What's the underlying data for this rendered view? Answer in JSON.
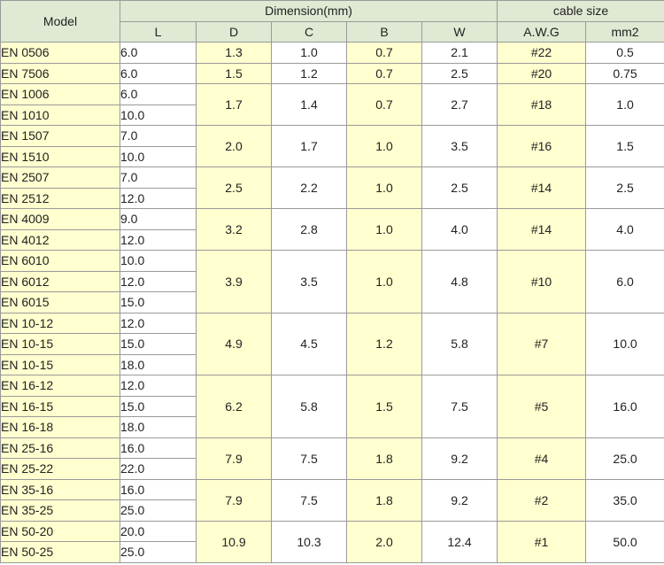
{
  "headers": {
    "model": "Model",
    "dimension": "Dimension(mm)",
    "cable": "cable size",
    "cols": [
      "L",
      "D",
      "C",
      "B",
      "W",
      "A.W.G",
      "mm2"
    ]
  },
  "groups": [
    {
      "rows": [
        {
          "model": "EN 0506",
          "L": "6.0"
        }
      ],
      "D": "1.3",
      "C": "1.0",
      "B": "0.7",
      "W": "2.1",
      "awg": "#22",
      "mm2": "0.5"
    },
    {
      "rows": [
        {
          "model": "EN 7506",
          "L": "6.0"
        }
      ],
      "D": "1.5",
      "C": "1.2",
      "B": "0.7",
      "W": "2.5",
      "awg": "#20",
      "mm2": "0.75"
    },
    {
      "rows": [
        {
          "model": "EN 1006",
          "L": "6.0"
        },
        {
          "model": "EN 1010",
          "L": "10.0"
        }
      ],
      "D": "1.7",
      "C": "1.4",
      "B": "0.7",
      "W": "2.7",
      "awg": "#18",
      "mm2": "1.0"
    },
    {
      "rows": [
        {
          "model": "EN 1507",
          "L": "7.0"
        },
        {
          "model": "EN 1510",
          "L": "10.0"
        }
      ],
      "D": "2.0",
      "C": "1.7",
      "B": "1.0",
      "W": "3.5",
      "awg": "#16",
      "mm2": "1.5"
    },
    {
      "rows": [
        {
          "model": "EN 2507",
          "L": "7.0"
        },
        {
          "model": "EN 2512",
          "L": "12.0"
        }
      ],
      "D": "2.5",
      "C": "2.2",
      "B": "1.0",
      "W": "2.5",
      "awg": "#14",
      "mm2": "2.5"
    },
    {
      "rows": [
        {
          "model": "EN 4009",
          "L": "9.0"
        },
        {
          "model": "EN 4012",
          "L": "12.0"
        }
      ],
      "D": "3.2",
      "C": "2.8",
      "B": "1.0",
      "W": "4.0",
      "awg": "#14",
      "mm2": "4.0"
    },
    {
      "rows": [
        {
          "model": "EN 6010",
          "L": "10.0"
        },
        {
          "model": "EN 6012",
          "L": "12.0"
        },
        {
          "model": "EN 6015",
          "L": "15.0"
        }
      ],
      "D": "3.9",
      "C": "3.5",
      "B": "1.0",
      "W": "4.8",
      "awg": "#10",
      "mm2": "6.0"
    },
    {
      "rows": [
        {
          "model": "EN 10-12",
          "L": "12.0"
        },
        {
          "model": "EN 10-15",
          "L": "15.0"
        },
        {
          "model": "EN 10-15",
          "L": "18.0"
        }
      ],
      "D": "4.9",
      "C": "4.5",
      "B": "1.2",
      "W": "5.8",
      "awg": "#7",
      "mm2": "10.0"
    },
    {
      "rows": [
        {
          "model": "EN 16-12",
          "L": "12.0"
        },
        {
          "model": "EN 16-15",
          "L": "15.0"
        },
        {
          "model": "EN 16-18",
          "L": "18.0"
        }
      ],
      "D": "6.2",
      "C": "5.8",
      "B": "1.5",
      "W": "7.5",
      "awg": "#5",
      "mm2": "16.0"
    },
    {
      "rows": [
        {
          "model": "EN 25-16",
          "L": "16.0"
        },
        {
          "model": "EN 25-22",
          "L": "22.0"
        }
      ],
      "D": "7.9",
      "C": "7.5",
      "B": "1.8",
      "W": "9.2",
      "awg": "#4",
      "mm2": "25.0"
    },
    {
      "rows": [
        {
          "model": "EN 35-16",
          "L": "16.0"
        },
        {
          "model": "EN 35-25",
          "L": "25.0"
        }
      ],
      "D": "7.9",
      "C": "7.5",
      "B": "1.8",
      "W": "9.2",
      "awg": "#2",
      "mm2": "35.0"
    },
    {
      "rows": [
        {
          "model": "EN 50-20",
          "L": "20.0"
        },
        {
          "model": "EN 50-25",
          "L": "25.0"
        }
      ],
      "D": "10.9",
      "C": "10.3",
      "B": "2.0",
      "W": "12.4",
      "awg": "#1",
      "mm2": "50.0"
    }
  ]
}
